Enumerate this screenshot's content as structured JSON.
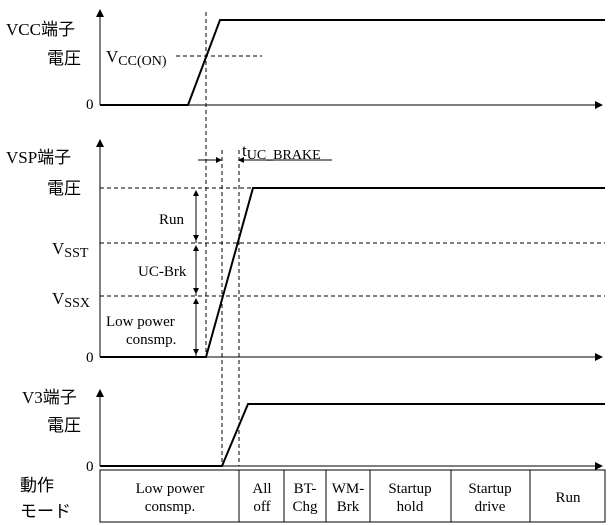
{
  "vcc": {
    "label_line1": "VCC端子",
    "label_line2": "電圧",
    "threshold_main": "V",
    "threshold_sub": "CC(ON)",
    "zero": "0"
  },
  "vsp": {
    "label_line1": "VSP端子",
    "label_line2": "電圧",
    "vsst_main": "V",
    "vsst_sub": "SST",
    "vssx_main": "V",
    "vssx_sub": "SSX",
    "zero": "0",
    "timing_main": "t",
    "timing_sub": "UC_BRAKE",
    "region_run": "Run",
    "region_ucbrk": "UC-Brk",
    "region_low_line1": "Low power",
    "region_low_line2": "consmp."
  },
  "v3": {
    "label_line1": "V3端子",
    "label_line2": "電圧",
    "zero": "0"
  },
  "mode": {
    "label_line1": "動作",
    "label_line2": "モード",
    "cells": [
      [
        "Low power",
        "consmp."
      ],
      [
        "All",
        "off"
      ],
      [
        "BT-",
        "Chg"
      ],
      [
        "WM-",
        "Brk"
      ],
      [
        "Startup",
        "hold"
      ],
      [
        "Startup",
        "drive"
      ],
      [
        "Run"
      ]
    ]
  }
}
